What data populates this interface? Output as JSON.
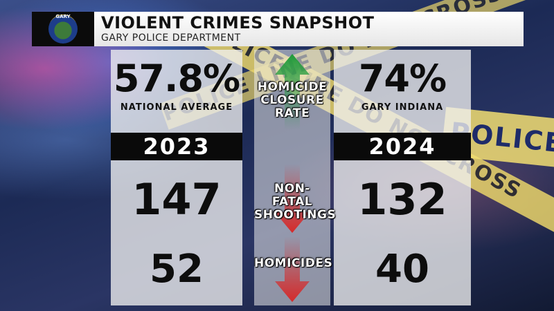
{
  "header": {
    "logo_text": "GARY",
    "title": "VIOLENT CRIMES SNAPSHOT",
    "subtitle": "GARY POLICE DEPARTMENT"
  },
  "background": {
    "tape_text_1": "POLICE LINE DO NOT CROSS",
    "tape_text_2": "POLICE LINE DO NOT CROSS",
    "tape_text_3": "POLICE"
  },
  "left": {
    "percent": "57.8%",
    "percent_caption": "NATIONAL AVERAGE",
    "year": "2023",
    "non_fatal_shootings": "147",
    "homicides": "52"
  },
  "middle": {
    "closure_label_1": "HOMICIDE",
    "closure_label_2": "CLOSURE RATE",
    "shootings_label_1": "NON-FATAL",
    "shootings_label_2": "SHOOTINGS",
    "homicides_label": "HOMICIDES"
  },
  "right": {
    "percent": "74%",
    "percent_caption": "GARY INDIANA",
    "year": "2024",
    "non_fatal_shootings": "132",
    "homicides": "40"
  },
  "colors": {
    "up_arrow": "#1f9a3a",
    "down_arrow": "#d62a2a"
  }
}
